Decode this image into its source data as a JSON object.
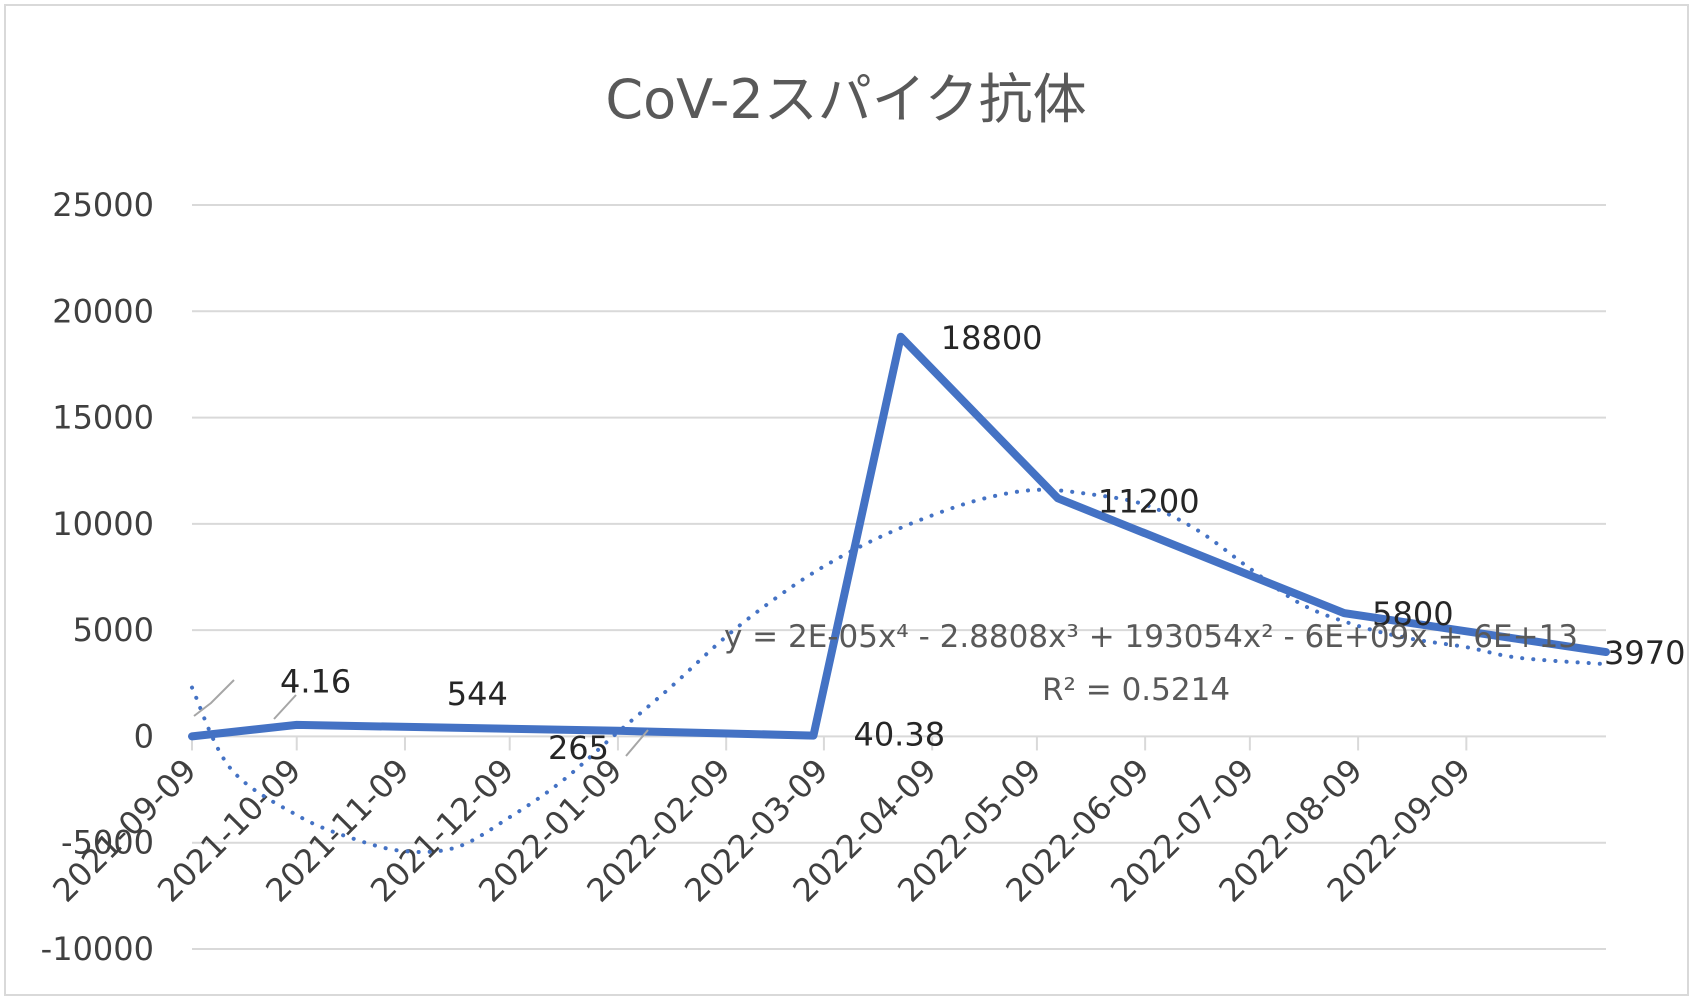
{
  "chart_data": {
    "type": "line",
    "title": "CoV-2スパイク抗体",
    "xlabel": "",
    "ylabel": "",
    "ylim": [
      -10000,
      25000
    ],
    "yticks": [
      25000,
      20000,
      15000,
      10000,
      5000,
      0,
      -5000,
      -10000
    ],
    "xlim": [
      "2021-09-09",
      "2022-10-19"
    ],
    "xticks": [
      "2021-09-09",
      "2021-10-09",
      "2021-11-09",
      "2021-12-09",
      "2022-01-09",
      "2022-02-09",
      "2022-03-09",
      "2022-04-09",
      "2022-05-09",
      "2022-06-09",
      "2022-07-09",
      "2022-08-09",
      "2022-09-09"
    ],
    "grid": true,
    "legend": "none",
    "series": [
      {
        "points": [
          {
            "x": "2021-09-09",
            "y": 4.16,
            "label": "4.16"
          },
          {
            "x": "2021-10-09",
            "y": 544,
            "label": "544"
          },
          {
            "x": "2022-01-09",
            "y": 265,
            "label": "265"
          },
          {
            "x": "2022-03-06",
            "y": 40.38,
            "label": "40.38"
          },
          {
            "x": "2022-03-31",
            "y": 18800,
            "label": "18800"
          },
          {
            "x": "2022-05-15",
            "y": 11200,
            "label": "11200"
          },
          {
            "x": "2022-08-05",
            "y": 5800,
            "label": "5800"
          },
          {
            "x": "2022-10-19",
            "y": 3970,
            "label": "3970"
          }
        ],
        "color": "#4472c4"
      }
    ],
    "trendline": {
      "type": "polynomial",
      "order": 4,
      "style": "dotted",
      "color": "#4472c4",
      "equation": "y = 2E-05x⁴ - 2.8808x³ + 193054x² - 6E+09x + 6E+13",
      "r_squared": "R² = 0.5214",
      "curve": [
        {
          "x": "2021-09-09",
          "y": 2300
        },
        {
          "x": "2021-09-20",
          "y": -1500
        },
        {
          "x": "2021-10-09",
          "y": -3700
        },
        {
          "x": "2021-10-25",
          "y": -4800
        },
        {
          "x": "2021-11-09",
          "y": -5400
        },
        {
          "x": "2021-11-24",
          "y": -5200
        },
        {
          "x": "2021-12-09",
          "y": -3800
        },
        {
          "x": "2021-12-24",
          "y": -2100
        },
        {
          "x": "2022-01-09",
          "y": 200
        },
        {
          "x": "2022-01-24",
          "y": 2300
        },
        {
          "x": "2022-02-09",
          "y": 4700
        },
        {
          "x": "2022-02-24",
          "y": 6600
        },
        {
          "x": "2022-03-09",
          "y": 8000
        },
        {
          "x": "2022-03-24",
          "y": 9300
        },
        {
          "x": "2022-04-09",
          "y": 10400
        },
        {
          "x": "2022-04-24",
          "y": 11200
        },
        {
          "x": "2022-05-09",
          "y": 11600
        },
        {
          "x": "2022-05-24",
          "y": 11400
        },
        {
          "x": "2022-06-09",
          "y": 10900
        },
        {
          "x": "2022-06-24",
          "y": 9700
        },
        {
          "x": "2022-07-09",
          "y": 7900
        },
        {
          "x": "2022-07-24",
          "y": 6200
        },
        {
          "x": "2022-08-09",
          "y": 5200
        },
        {
          "x": "2022-08-24",
          "y": 4600
        },
        {
          "x": "2022-09-09",
          "y": 4200
        },
        {
          "x": "2022-09-24",
          "y": 3700
        },
        {
          "x": "2022-10-19",
          "y": 3400
        }
      ]
    }
  }
}
